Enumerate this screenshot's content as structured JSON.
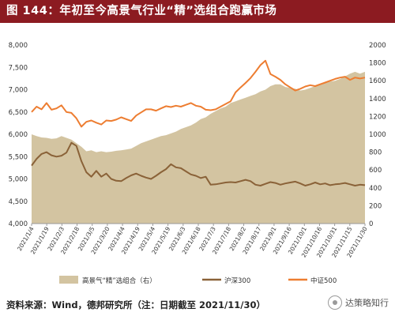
{
  "header": {
    "title": "图 144：年初至今高景气行业“精”选组合跑赢市场"
  },
  "footer": {
    "source": "资料来源：Wind，德邦研究所（注：日期截至 2021/11/30）",
    "watermark": "达策略知行"
  },
  "colors": {
    "area": "#d3c4a1",
    "hs300": "#8a6238",
    "zz500": "#ed7d31",
    "title_bg": "#8c1b21"
  },
  "chart_data": {
    "type": "line",
    "x_ticks": [
      "2021/1/4",
      "2021/1/19",
      "2021/2/3",
      "2021/2/18",
      "2021/3/5",
      "2021/3/20",
      "2021/4/4",
      "2021/4/19",
      "2021/5/4",
      "2021/5/19",
      "2021/6/3",
      "2021/6/18",
      "2021/7/3",
      "2021/7/18",
      "2021/8/2",
      "2021/8/17",
      "2021/9/1",
      "2021/9/16",
      "2021/10/1",
      "2021/10/16",
      "2021/10/31",
      "2021/11/15",
      "2021/11/30"
    ],
    "y_left": {
      "min": 4000,
      "max": 8000,
      "ticks": [
        "4,000",
        "4,500",
        "5,000",
        "5,500",
        "6,000",
        "6,500",
        "7,000",
        "7,500",
        "8,000"
      ]
    },
    "y_right": {
      "min": 0,
      "max": 2000,
      "ticks": [
        "0",
        "200",
        "400",
        "600",
        "800",
        "1000",
        "1200",
        "1400",
        "1600",
        "1800",
        "2000"
      ]
    },
    "legend": [
      "高景气“精”选组合（右）",
      "沪深300",
      "中证500"
    ],
    "series": [
      {
        "name": "高景气“精”选组合（右）",
        "axis": "right",
        "kind": "area",
        "values": [
          1000,
          980,
          965,
          960,
          950,
          955,
          980,
          960,
          940,
          900,
          860,
          810,
          820,
          800,
          810,
          800,
          805,
          815,
          820,
          830,
          840,
          870,
          900,
          920,
          940,
          960,
          980,
          990,
          1010,
          1030,
          1060,
          1080,
          1100,
          1130,
          1170,
          1190,
          1230,
          1260,
          1290,
          1310,
          1350,
          1370,
          1390,
          1410,
          1430,
          1450,
          1480,
          1500,
          1540,
          1560,
          1560,
          1530,
          1520,
          1510,
          1490,
          1500,
          1520,
          1540,
          1560,
          1580,
          1590,
          1600,
          1620,
          1650,
          1680,
          1700,
          1680,
          1700
        ]
      },
      {
        "name": "沪深300",
        "axis": "left",
        "values": [
          5300,
          5450,
          5560,
          5600,
          5530,
          5500,
          5520,
          5590,
          5810,
          5740,
          5400,
          5150,
          5050,
          5180,
          5050,
          5120,
          5000,
          4960,
          4950,
          5020,
          5080,
          5120,
          5070,
          5030,
          5000,
          5070,
          5150,
          5220,
          5330,
          5260,
          5240,
          5170,
          5100,
          5070,
          5020,
          5050,
          4870,
          4880,
          4900,
          4920,
          4930,
          4920,
          4950,
          4980,
          4950,
          4870,
          4850,
          4890,
          4930,
          4910,
          4870,
          4900,
          4920,
          4940,
          4900,
          4850,
          4880,
          4920,
          4880,
          4900,
          4860,
          4880,
          4890,
          4910,
          4880,
          4850,
          4870,
          4860
        ]
      },
      {
        "name": "中证500",
        "axis": "left",
        "values": [
          6500,
          6620,
          6560,
          6700,
          6550,
          6580,
          6650,
          6500,
          6480,
          6360,
          6170,
          6280,
          6310,
          6260,
          6220,
          6310,
          6300,
          6330,
          6380,
          6340,
          6300,
          6420,
          6490,
          6560,
          6560,
          6530,
          6580,
          6630,
          6610,
          6640,
          6620,
          6660,
          6700,
          6640,
          6620,
          6550,
          6540,
          6560,
          6620,
          6680,
          6740,
          6940,
          7050,
          7150,
          7260,
          7400,
          7550,
          7650,
          7350,
          7290,
          7220,
          7120,
          7050,
          6980,
          7020,
          7070,
          7100,
          7080,
          7120,
          7160,
          7200,
          7240,
          7270,
          7290,
          7220,
          7270,
          7250,
          7270
        ]
      }
    ]
  }
}
